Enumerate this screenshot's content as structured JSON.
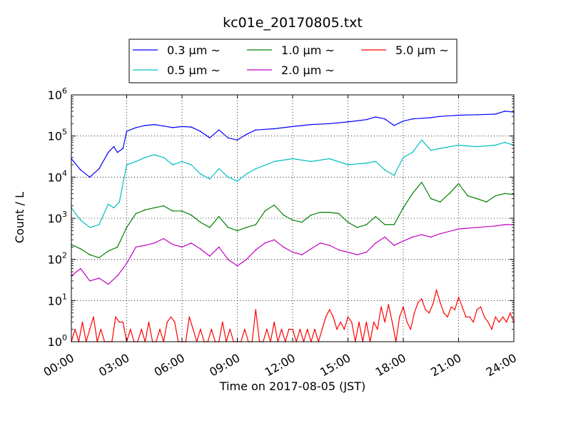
{
  "chart_data": {
    "type": "line",
    "title": "kc01e_20170805.txt",
    "xlabel": "Time on 2017-08-05 (JST)",
    "ylabel": "Count / L",
    "x_unit": "hours",
    "xlim": [
      0,
      24
    ],
    "ylim": [
      1,
      1000000
    ],
    "yscale": "log",
    "grid": true,
    "legend_position": "top-center",
    "xtick_values": [
      0,
      3,
      6,
      9,
      12,
      15,
      18,
      21,
      24
    ],
    "xtick_labels": [
      "00:00",
      "03:00",
      "06:00",
      "09:00",
      "12:00",
      "15:00",
      "18:00",
      "21:00",
      "24:00"
    ],
    "ytick_values": [
      1,
      10,
      100,
      1000,
      10000,
      100000,
      1000000
    ],
    "ytick_labels": [
      {
        "base": "10",
        "exp": "0"
      },
      {
        "base": "10",
        "exp": "1"
      },
      {
        "base": "10",
        "exp": "2"
      },
      {
        "base": "10",
        "exp": "3"
      },
      {
        "base": "10",
        "exp": "4"
      },
      {
        "base": "10",
        "exp": "5"
      },
      {
        "base": "10",
        "exp": "6"
      }
    ],
    "series": [
      {
        "name": "0.3 μm ~",
        "color": "#0000ff",
        "points": [
          [
            0,
            28000
          ],
          [
            0.5,
            15000
          ],
          [
            1,
            10000
          ],
          [
            1.5,
            16000
          ],
          [
            2,
            40000
          ],
          [
            2.3,
            55000
          ],
          [
            2.5,
            40000
          ],
          [
            2.8,
            50000
          ],
          [
            3,
            130000
          ],
          [
            3.5,
            160000
          ],
          [
            4,
            180000
          ],
          [
            4.5,
            190000
          ],
          [
            5,
            175000
          ],
          [
            5.5,
            160000
          ],
          [
            6,
            170000
          ],
          [
            6.5,
            165000
          ],
          [
            7,
            130000
          ],
          [
            7.5,
            90000
          ],
          [
            8,
            140000
          ],
          [
            8.5,
            90000
          ],
          [
            9,
            80000
          ],
          [
            9.5,
            110000
          ],
          [
            10,
            140000
          ],
          [
            11,
            150000
          ],
          [
            12,
            170000
          ],
          [
            13,
            190000
          ],
          [
            14,
            200000
          ],
          [
            15,
            220000
          ],
          [
            16,
            250000
          ],
          [
            16.5,
            290000
          ],
          [
            17,
            260000
          ],
          [
            17.5,
            180000
          ],
          [
            18,
            230000
          ],
          [
            18.5,
            260000
          ],
          [
            19,
            270000
          ],
          [
            19.5,
            280000
          ],
          [
            20,
            300000
          ],
          [
            21,
            320000
          ],
          [
            22,
            330000
          ],
          [
            23,
            340000
          ],
          [
            23.5,
            400000
          ],
          [
            24,
            380000
          ]
        ]
      },
      {
        "name": "0.5 μm ~",
        "color": "#00bfbf",
        "points": [
          [
            0,
            1800
          ],
          [
            0.5,
            900
          ],
          [
            1,
            600
          ],
          [
            1.5,
            700
          ],
          [
            2,
            2200
          ],
          [
            2.3,
            1800
          ],
          [
            2.6,
            2500
          ],
          [
            3,
            20000
          ],
          [
            3.5,
            24000
          ],
          [
            4,
            30000
          ],
          [
            4.5,
            35000
          ],
          [
            5,
            30000
          ],
          [
            5.5,
            20000
          ],
          [
            6,
            24000
          ],
          [
            6.5,
            20000
          ],
          [
            7,
            12000
          ],
          [
            7.5,
            9000
          ],
          [
            8,
            16000
          ],
          [
            8.5,
            10000
          ],
          [
            9,
            8000
          ],
          [
            9.5,
            12000
          ],
          [
            10,
            16000
          ],
          [
            11,
            24000
          ],
          [
            12,
            28000
          ],
          [
            13,
            24000
          ],
          [
            14,
            28000
          ],
          [
            15,
            20000
          ],
          [
            16,
            22000
          ],
          [
            16.5,
            24000
          ],
          [
            17,
            15000
          ],
          [
            17.5,
            11000
          ],
          [
            18,
            30000
          ],
          [
            18.5,
            40000
          ],
          [
            19,
            80000
          ],
          [
            19.5,
            45000
          ],
          [
            20,
            50000
          ],
          [
            21,
            60000
          ],
          [
            22,
            55000
          ],
          [
            23,
            60000
          ],
          [
            23.5,
            70000
          ],
          [
            24,
            60000
          ]
        ]
      },
      {
        "name": "1.0 μm ~",
        "color": "#008000",
        "points": [
          [
            0,
            230
          ],
          [
            0.5,
            180
          ],
          [
            1,
            130
          ],
          [
            1.5,
            110
          ],
          [
            2,
            160
          ],
          [
            2.5,
            200
          ],
          [
            3,
            600
          ],
          [
            3.5,
            1300
          ],
          [
            4,
            1600
          ],
          [
            4.5,
            1800
          ],
          [
            5,
            2000
          ],
          [
            5.5,
            1500
          ],
          [
            6,
            1500
          ],
          [
            6.5,
            1200
          ],
          [
            7,
            800
          ],
          [
            7.5,
            600
          ],
          [
            8,
            1100
          ],
          [
            8.5,
            600
          ],
          [
            9,
            500
          ],
          [
            9.5,
            600
          ],
          [
            10,
            700
          ],
          [
            10.5,
            1500
          ],
          [
            11,
            2100
          ],
          [
            11.5,
            1200
          ],
          [
            12,
            900
          ],
          [
            12.5,
            800
          ],
          [
            13,
            1200
          ],
          [
            13.5,
            1400
          ],
          [
            14,
            1400
          ],
          [
            14.5,
            1300
          ],
          [
            15,
            800
          ],
          [
            15.5,
            600
          ],
          [
            16,
            700
          ],
          [
            16.5,
            1100
          ],
          [
            17,
            700
          ],
          [
            17.5,
            700
          ],
          [
            18,
            1800
          ],
          [
            18.5,
            4000
          ],
          [
            19,
            7500
          ],
          [
            19.5,
            3000
          ],
          [
            20,
            2500
          ],
          [
            20.5,
            4000
          ],
          [
            21,
            7000
          ],
          [
            21.5,
            3500
          ],
          [
            22,
            3000
          ],
          [
            22.5,
            2500
          ],
          [
            23,
            3500
          ],
          [
            23.5,
            4000
          ],
          [
            24,
            3800
          ]
        ]
      },
      {
        "name": "2.0 μm ~",
        "color": "#bf00bf",
        "points": [
          [
            0,
            40
          ],
          [
            0.5,
            60
          ],
          [
            1,
            30
          ],
          [
            1.5,
            35
          ],
          [
            2,
            25
          ],
          [
            2.5,
            40
          ],
          [
            3,
            80
          ],
          [
            3.5,
            200
          ],
          [
            4,
            220
          ],
          [
            4.5,
            250
          ],
          [
            5,
            320
          ],
          [
            5.5,
            230
          ],
          [
            6,
            200
          ],
          [
            6.5,
            250
          ],
          [
            7,
            180
          ],
          [
            7.5,
            120
          ],
          [
            8,
            200
          ],
          [
            8.5,
            100
          ],
          [
            9,
            70
          ],
          [
            9.5,
            100
          ],
          [
            10,
            170
          ],
          [
            10.5,
            250
          ],
          [
            11,
            300
          ],
          [
            11.5,
            200
          ],
          [
            12,
            150
          ],
          [
            12.5,
            130
          ],
          [
            13,
            180
          ],
          [
            13.5,
            250
          ],
          [
            14,
            220
          ],
          [
            14.5,
            170
          ],
          [
            15,
            150
          ],
          [
            15.5,
            130
          ],
          [
            16,
            150
          ],
          [
            16.5,
            250
          ],
          [
            17,
            350
          ],
          [
            17.5,
            220
          ],
          [
            18,
            280
          ],
          [
            18.5,
            350
          ],
          [
            19,
            400
          ],
          [
            19.5,
            350
          ],
          [
            20,
            420
          ],
          [
            21,
            550
          ],
          [
            22,
            600
          ],
          [
            23,
            650
          ],
          [
            23.5,
            700
          ],
          [
            24,
            700
          ]
        ]
      },
      {
        "name": "5.0 μm ~",
        "color": "#ff0000",
        "points": [
          [
            0,
            1
          ],
          [
            0.2,
            2
          ],
          [
            0.4,
            1
          ],
          [
            0.6,
            3
          ],
          [
            0.8,
            1
          ],
          [
            1,
            2
          ],
          [
            1.2,
            4
          ],
          [
            1.4,
            1
          ],
          [
            1.6,
            2
          ],
          [
            1.8,
            1
          ],
          [
            2,
            1
          ],
          [
            2.2,
            1
          ],
          [
            2.4,
            4
          ],
          [
            2.6,
            3
          ],
          [
            2.8,
            3
          ],
          [
            3,
            1
          ],
          [
            3.2,
            2
          ],
          [
            3.4,
            1
          ],
          [
            3.6,
            1
          ],
          [
            3.8,
            2
          ],
          [
            4,
            1
          ],
          [
            4.2,
            3
          ],
          [
            4.4,
            1
          ],
          [
            4.6,
            1
          ],
          [
            4.8,
            2
          ],
          [
            5,
            1
          ],
          [
            5.2,
            3
          ],
          [
            5.4,
            4
          ],
          [
            5.6,
            3
          ],
          [
            5.8,
            1
          ],
          [
            6,
            1
          ],
          [
            6.2,
            1
          ],
          [
            6.4,
            4
          ],
          [
            6.6,
            2
          ],
          [
            6.8,
            1
          ],
          [
            7,
            2
          ],
          [
            7.2,
            1
          ],
          [
            7.4,
            1
          ],
          [
            7.6,
            2
          ],
          [
            7.8,
            1
          ],
          [
            8,
            1
          ],
          [
            8.2,
            3
          ],
          [
            8.4,
            1
          ],
          [
            8.6,
            2
          ],
          [
            8.8,
            1
          ],
          [
            9,
            1
          ],
          [
            9.2,
            1
          ],
          [
            9.4,
            2
          ],
          [
            9.6,
            1
          ],
          [
            9.8,
            1
          ],
          [
            10,
            6
          ],
          [
            10.2,
            1
          ],
          [
            10.4,
            1
          ],
          [
            10.6,
            2
          ],
          [
            10.8,
            1
          ],
          [
            11,
            3
          ],
          [
            11.2,
            1
          ],
          [
            11.4,
            2
          ],
          [
            11.6,
            1
          ],
          [
            11.8,
            2
          ],
          [
            12,
            2
          ],
          [
            12.2,
            1
          ],
          [
            12.4,
            2
          ],
          [
            12.6,
            1
          ],
          [
            12.8,
            2
          ],
          [
            13,
            1
          ],
          [
            13.2,
            2
          ],
          [
            13.4,
            1
          ],
          [
            13.6,
            2
          ],
          [
            13.8,
            4
          ],
          [
            14,
            6
          ],
          [
            14.2,
            4
          ],
          [
            14.4,
            2
          ],
          [
            14.6,
            3
          ],
          [
            14.8,
            2
          ],
          [
            15,
            4
          ],
          [
            15.2,
            3
          ],
          [
            15.4,
            1
          ],
          [
            15.6,
            3
          ],
          [
            15.8,
            1
          ],
          [
            16,
            3
          ],
          [
            16.2,
            1
          ],
          [
            16.4,
            3
          ],
          [
            16.6,
            2
          ],
          [
            16.8,
            7
          ],
          [
            17,
            3
          ],
          [
            17.2,
            8
          ],
          [
            17.4,
            3
          ],
          [
            17.6,
            1
          ],
          [
            17.8,
            4
          ],
          [
            18,
            7
          ],
          [
            18.2,
            3
          ],
          [
            18.4,
            2
          ],
          [
            18.6,
            5
          ],
          [
            18.8,
            9
          ],
          [
            19,
            11
          ],
          [
            19.2,
            6
          ],
          [
            19.4,
            5
          ],
          [
            19.6,
            8
          ],
          [
            19.8,
            18
          ],
          [
            20,
            9
          ],
          [
            20.2,
            5
          ],
          [
            20.4,
            4
          ],
          [
            20.6,
            7
          ],
          [
            20.8,
            6
          ],
          [
            21,
            12
          ],
          [
            21.2,
            7
          ],
          [
            21.4,
            4
          ],
          [
            21.6,
            4
          ],
          [
            21.8,
            3
          ],
          [
            22,
            6
          ],
          [
            22.2,
            7
          ],
          [
            22.4,
            4
          ],
          [
            22.6,
            3
          ],
          [
            22.8,
            2
          ],
          [
            23,
            4
          ],
          [
            23.2,
            3
          ],
          [
            23.4,
            4
          ],
          [
            23.6,
            3
          ],
          [
            23.8,
            5
          ],
          [
            24,
            3
          ]
        ]
      }
    ]
  }
}
